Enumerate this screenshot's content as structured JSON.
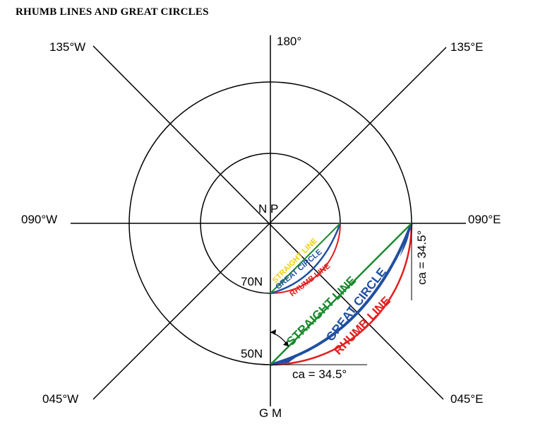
{
  "title": "RHUMB LINES AND GREAT CIRCLES",
  "directions": {
    "north": "180°",
    "ne": "135°E",
    "east": "090°E",
    "se": "045°E",
    "south": "G M",
    "sw": "045°W",
    "west": "090°W",
    "nw": "135°W"
  },
  "pole": "N P",
  "parallels": {
    "inner": "70N",
    "outer": "50N"
  },
  "inner_labels": {
    "straight": "STRAIGHT LINE",
    "great": "GREAT CIRCLE",
    "rhumb": "RHUMB LINE"
  },
  "outer_labels": {
    "straight": "STRAIGHT  LINE",
    "great": "GREAT CIRCLE",
    "rhumb": "RHUMB LINE"
  },
  "convergency": {
    "bottom": "ca = 34.5°",
    "right": "ca = 34.5°"
  },
  "colors": {
    "straight_outer": "#1a8a2e",
    "straight_inner": "#f0d000",
    "great_circle": "#1f4fa0",
    "rhumb_line": "#e41e1e",
    "angle_fill": "#1f4fa0"
  }
}
